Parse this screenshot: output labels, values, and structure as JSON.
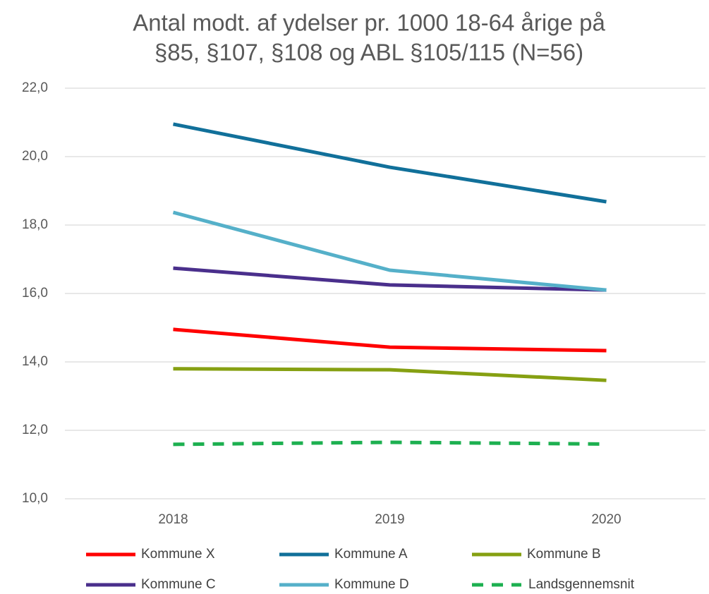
{
  "chart_data": {
    "type": "line",
    "title": [
      "Antal modt. af ydelser pr. 1000 18-64 årige på",
      "§85, §107, §108 og ABL §105/115 (N=56)"
    ],
    "categories": [
      "2018",
      "2019",
      "2020"
    ],
    "series": [
      {
        "name": "Kommune X",
        "color": "#ff0000",
        "values": [
          14.95,
          14.43,
          14.33
        ]
      },
      {
        "name": "Kommune A",
        "color": "#11709a",
        "values": [
          20.95,
          19.69,
          18.68
        ]
      },
      {
        "name": "Kommune B",
        "color": "#86a012",
        "values": [
          13.8,
          13.77,
          13.46
        ]
      },
      {
        "name": "Kommune C",
        "color": "#4a2f8c",
        "values": [
          16.74,
          16.25,
          16.1
        ]
      },
      {
        "name": "Kommune D",
        "color": "#55b0c9",
        "values": [
          18.37,
          16.68,
          16.1
        ]
      },
      {
        "name": "Landsgennemsnit",
        "color": "#1db050",
        "dashed": true,
        "values": [
          11.59,
          11.65,
          11.6
        ]
      }
    ],
    "ylim": [
      10,
      22
    ],
    "yticks": [
      {
        "value": 10,
        "label": "10,0"
      },
      {
        "value": 12,
        "label": "12,0"
      },
      {
        "value": 14,
        "label": "14,0"
      },
      {
        "value": 16,
        "label": "16,0"
      },
      {
        "value": 18,
        "label": "18,0"
      },
      {
        "value": 20,
        "label": "20,0"
      },
      {
        "value": 22,
        "label": "22,0"
      }
    ],
    "grid": true,
    "legend": "bottom"
  }
}
